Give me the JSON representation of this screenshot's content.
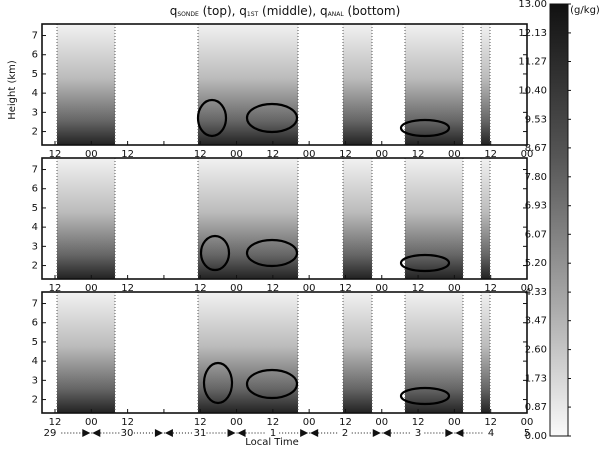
{
  "chart_data": {
    "type": "contour",
    "title_parts": [
      "q",
      "SONDE",
      " (top), ",
      "q",
      "1ST",
      " (middle), ",
      "q",
      "ANAL",
      " (bottom)"
    ],
    "ylabel": "Height (km)",
    "xlabel": "Local Time",
    "ylim": [
      1.3,
      7.6
    ],
    "yticks": [
      2,
      3,
      4,
      5,
      6,
      7
    ],
    "time_ticks": [
      "12",
      "00",
      "12",
      null,
      "12",
      "00",
      "12",
      "00",
      "12",
      "00",
      "12",
      "00",
      "12",
      "00"
    ],
    "day_labels": [
      "29",
      "30",
      "31",
      "1",
      "2",
      "3",
      "4",
      "5"
    ],
    "colorbar": {
      "label": "(g/kg)",
      "lim": [
        0,
        13
      ],
      "ticks": [
        {
          "value": 13,
          "label": "13.00"
        },
        12.13,
        11.27,
        {
          "value": 10.4,
          "label": "10.40"
        },
        9.53,
        8.67,
        {
          "value": 7.8,
          "label": "7.80"
        },
        6.93,
        6.07,
        {
          "value": 5.2,
          "label": "5.20"
        },
        4.33,
        3.47,
        {
          "value": 2.6,
          "label": "2.60"
        },
        1.73,
        0.87,
        {
          "value": 0,
          "label": "0.00"
        }
      ]
    }
  }
}
